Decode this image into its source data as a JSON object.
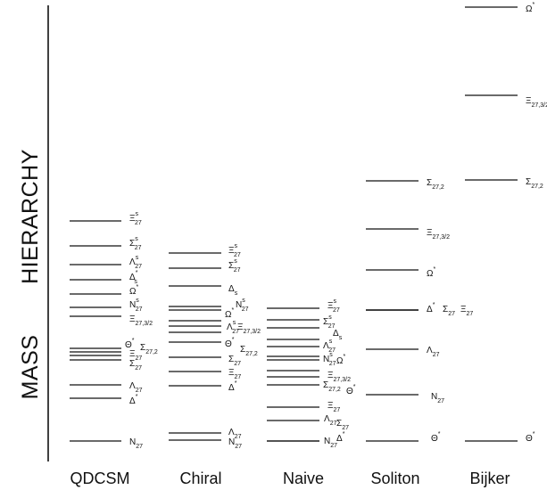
{
  "axis": {
    "label_left": "MASS",
    "label_right": "HIERARCHY"
  },
  "columns": [
    {
      "name": "QDCSM",
      "levels": [
        {
          "label": "Ξ",
          "sub": "27",
          "sup": "s"
        },
        {
          "label": "Σ",
          "sub": "27",
          "sup": "s"
        },
        {
          "label": "Λ",
          "sub": "27",
          "sup": "s"
        },
        {
          "label": "Δ",
          "sub": "s",
          "sup": "*"
        },
        {
          "label": "Ω",
          "sub": "",
          "sup": "*"
        },
        {
          "label": "N",
          "sub": "27",
          "sup": "s"
        },
        {
          "label": "Ξ",
          "sub": "27,3/2",
          "sup": ""
        },
        {
          "label": "Θ",
          "sub": "",
          "sup": "*"
        },
        {
          "label": "Σ",
          "sub": "27,2",
          "sup": ""
        },
        {
          "label": "Ξ",
          "sub": "27",
          "sup": ""
        },
        {
          "label": "Σ",
          "sub": "27",
          "sup": ""
        },
        {
          "label": "Λ",
          "sub": "27",
          "sup": ""
        },
        {
          "label": "Δ",
          "sub": "",
          "sup": "*"
        },
        {
          "label": "N",
          "sub": "27",
          "sup": ""
        }
      ]
    },
    {
      "name": "Chiral",
      "levels": [
        {
          "label": "Ξ",
          "sub": "27",
          "sup": "s"
        },
        {
          "label": "Σ",
          "sub": "27",
          "sup": "s"
        },
        {
          "label": "Δ",
          "sub": "s",
          "sup": ""
        },
        {
          "label": "N",
          "sub": "27",
          "sup": "s"
        },
        {
          "label": "Ω",
          "sub": "",
          "sup": "*"
        },
        {
          "label": "Λ",
          "sub": "27",
          "sup": "s"
        },
        {
          "label": "Ξ",
          "sub": "27,3/2",
          "sup": ""
        },
        {
          "label": "Θ",
          "sub": "",
          "sup": "*"
        },
        {
          "label": "Σ",
          "sub": "27,2",
          "sup": ""
        },
        {
          "label": "Σ",
          "sub": "27",
          "sup": ""
        },
        {
          "label": "Ξ",
          "sub": "27",
          "sup": ""
        },
        {
          "label": "Δ",
          "sub": "",
          "sup": "*"
        },
        {
          "label": "Λ",
          "sub": "27",
          "sup": ""
        },
        {
          "label": "N",
          "sub": "27",
          "sup": ""
        }
      ]
    },
    {
      "name": "Naive",
      "levels": [
        {
          "label": "Ξ",
          "sub": "27",
          "sup": "s"
        },
        {
          "label": "Σ",
          "sub": "27",
          "sup": "s"
        },
        {
          "label": "Δ",
          "sub": "s",
          "sup": ""
        },
        {
          "label": "Λ",
          "sub": "27",
          "sup": "s"
        },
        {
          "label": "N",
          "sub": "27",
          "sup": "s"
        },
        {
          "label": "Ω",
          "sub": "",
          "sup": "*"
        },
        {
          "label": "Ξ",
          "sub": "27,3/2",
          "sup": ""
        },
        {
          "label": "Σ",
          "sub": "27,2",
          "sup": ""
        },
        {
          "label": "Θ",
          "sub": "",
          "sup": "*"
        },
        {
          "label": "Ξ",
          "sub": "27",
          "sup": ""
        },
        {
          "label": "Λ",
          "sub": "27",
          "sup": ""
        },
        {
          "label": "Σ",
          "sub": "27",
          "sup": ""
        },
        {
          "label": "N",
          "sub": "27",
          "sup": ""
        },
        {
          "label": "Δ",
          "sub": "",
          "sup": "*"
        }
      ]
    },
    {
      "name": "Soliton",
      "levels": [
        {
          "label": "Σ",
          "sub": "27,2",
          "sup": ""
        },
        {
          "label": "Ξ",
          "sub": "27,3/2",
          "sup": ""
        },
        {
          "label": "Ω",
          "sub": "",
          "sup": "*"
        },
        {
          "label": "Δ",
          "sub": "",
          "sup": "*"
        },
        {
          "label": "Σ",
          "sub": "27",
          "sup": ""
        },
        {
          "label": "Ξ",
          "sub": "27",
          "sup": ""
        },
        {
          "label": "Λ",
          "sub": "27",
          "sup": ""
        },
        {
          "label": "N",
          "sub": "27",
          "sup": ""
        },
        {
          "label": "Θ",
          "sub": "",
          "sup": "*"
        }
      ]
    },
    {
      "name": "Bijker",
      "levels": [
        {
          "label": "Ω",
          "sub": "",
          "sup": "*"
        },
        {
          "label": "Ξ",
          "sub": "27,3/2",
          "sup": ""
        },
        {
          "label": "Σ",
          "sub": "27,2",
          "sup": ""
        },
        {
          "label": "Θ",
          "sub": "",
          "sup": "*"
        }
      ]
    }
  ]
}
